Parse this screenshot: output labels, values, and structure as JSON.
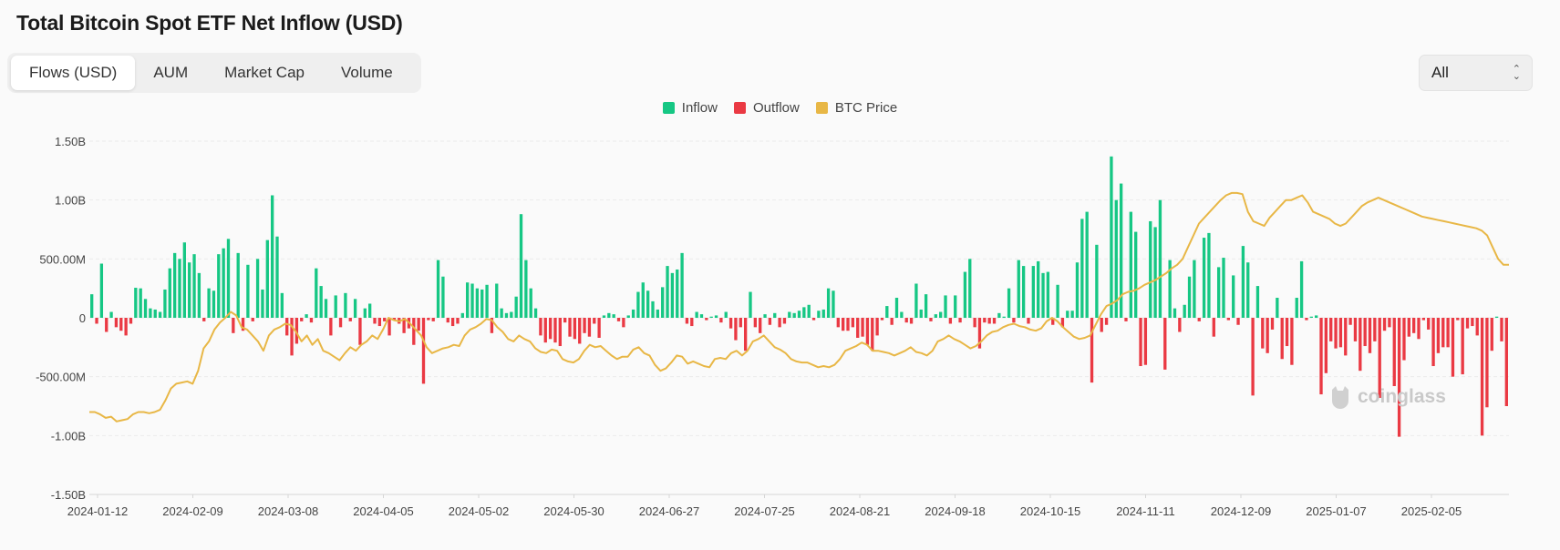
{
  "title": "Total Bitcoin Spot ETF Net Inflow (USD)",
  "tabs": [
    {
      "label": "Flows (USD)",
      "active": true
    },
    {
      "label": "AUM",
      "active": false
    },
    {
      "label": "Market Cap",
      "active": false
    },
    {
      "label": "Volume",
      "active": false
    }
  ],
  "range_select": {
    "value": "All"
  },
  "legend": [
    {
      "label": "Inflow",
      "color": "#16c784"
    },
    {
      "label": "Outflow",
      "color": "#ea3943"
    },
    {
      "label": "BTC Price",
      "color": "#e8b746"
    }
  ],
  "watermark": "coinglass",
  "chart_data": {
    "type": "bar",
    "title": "Total Bitcoin Spot ETF Net Inflow (USD)",
    "unit": "USD",
    "ylim": [
      -1500000000,
      1500000000
    ],
    "yticks": [
      1500000000,
      1000000000,
      500000000,
      0,
      -500000000,
      -1000000000,
      -1500000000
    ],
    "ytick_labels": [
      "1.50B",
      "1.00B",
      "500.00M",
      "0",
      "-500.00M",
      "-1.00B",
      "-1.50B"
    ],
    "xtick_labels": [
      "2024-01-12",
      "2024-02-09",
      "2024-03-08",
      "2024-04-05",
      "2024-05-02",
      "2024-05-30",
      "2024-06-27",
      "2024-07-25",
      "2024-08-21",
      "2024-09-18",
      "2024-10-15",
      "2024-11-11",
      "2024-12-09",
      "2025-01-07",
      "2025-02-05"
    ],
    "series": [
      {
        "name": "Net Flow (M USD)",
        "values": [
          200,
          -50,
          460,
          -120,
          50,
          -80,
          -110,
          -150,
          -50,
          255,
          250,
          160,
          80,
          70,
          50,
          240,
          420,
          550,
          500,
          640,
          470,
          540,
          380,
          -30,
          250,
          230,
          540,
          590,
          670,
          -130,
          550,
          -110,
          450,
          -30,
          500,
          240,
          660,
          1040,
          690,
          210,
          -150,
          -320,
          -220,
          -30,
          30,
          -40,
          420,
          270,
          160,
          -150,
          190,
          -80,
          210,
          -30,
          160,
          -230,
          80,
          120,
          -50,
          -70,
          -30,
          -150,
          -20,
          -50,
          -130,
          -90,
          -230,
          -110,
          -560,
          -20,
          -30,
          490,
          350,
          -40,
          -70,
          -50,
          40,
          300,
          290,
          250,
          240,
          280,
          -130,
          290,
          80,
          40,
          50,
          180,
          880,
          490,
          250,
          80,
          -150,
          -210,
          -180,
          -210,
          -240,
          -40,
          -160,
          -180,
          -220,
          -130,
          -160,
          -50,
          -170,
          20,
          40,
          30,
          -30,
          -80,
          20,
          70,
          220,
          300,
          230,
          140,
          70,
          260,
          440,
          380,
          410,
          550,
          -50,
          -70,
          50,
          30,
          -20,
          10,
          20,
          -40,
          50,
          -90,
          -190,
          -80,
          -280,
          220,
          -80,
          -130,
          30,
          -60,
          40,
          -80,
          -50,
          50,
          40,
          60,
          90,
          110,
          -20,
          60,
          70,
          250,
          230,
          -80,
          -110,
          -110,
          -80,
          -170,
          -160,
          -230,
          -280,
          -150,
          -20,
          100,
          -60,
          170,
          50,
          -40,
          -50,
          290,
          70,
          200,
          -30,
          30,
          50,
          190,
          -50,
          190,
          -40,
          390,
          500,
          -80,
          -260,
          -40,
          -50,
          -50,
          40,
          10,
          250,
          -40,
          490,
          440,
          -50,
          440,
          480,
          380,
          390,
          -60,
          280,
          -80,
          60,
          60,
          470,
          840,
          900,
          -550,
          620,
          -120,
          -60,
          1370,
          1000,
          1140,
          -30,
          900,
          730,
          -410,
          -400,
          820,
          770,
          1000,
          -440,
          490,
          80,
          -120,
          110,
          350,
          490,
          -30,
          680,
          720,
          -160,
          430,
          510,
          -20,
          360,
          -60,
          610,
          470,
          -660,
          270,
          -260,
          -300,
          -100,
          170,
          -350,
          -240,
          -400,
          170,
          480,
          -20,
          10,
          20,
          -650,
          -470,
          -200,
          -260,
          -250,
          -320,
          -60,
          -200,
          -450,
          -240,
          -300,
          -200,
          -680,
          -110,
          -80,
          -580,
          -1010,
          -360,
          -160,
          -130,
          -180,
          -20,
          -100,
          -410,
          -300,
          -250,
          -250,
          -500,
          -20,
          -480,
          -90,
          -70,
          -150,
          -1000,
          -760,
          -280,
          10,
          -200,
          -750
        ]
      },
      {
        "name": "BTC Price (plotted on flow scale, M)",
        "values": [
          -800,
          -800,
          -820,
          -850,
          -840,
          -880,
          -870,
          -860,
          -820,
          -800,
          -800,
          -810,
          -800,
          -780,
          -700,
          -600,
          -560,
          -550,
          -540,
          -560,
          -450,
          -260,
          -200,
          -100,
          -40,
          0,
          50,
          20,
          -80,
          -100,
          -150,
          -200,
          -280,
          -150,
          -100,
          -80,
          -50,
          -60,
          -120,
          -200,
          -150,
          -230,
          -180,
          -280,
          -300,
          -330,
          -360,
          -300,
          -250,
          -280,
          -230,
          -200,
          -150,
          -180,
          -100,
          0,
          -20,
          -30,
          -10,
          -50,
          -100,
          -150,
          -250,
          -300,
          -280,
          -260,
          -250,
          -230,
          -240,
          -150,
          -100,
          -80,
          -50,
          -10,
          -20,
          -80,
          -120,
          -180,
          -200,
          -150,
          -180,
          -200,
          -260,
          -290,
          -300,
          -270,
          -280,
          -350,
          -370,
          -380,
          -350,
          -280,
          -230,
          -250,
          -240,
          -280,
          -320,
          -350,
          -330,
          -330,
          -270,
          -250,
          -300,
          -320,
          -400,
          -450,
          -430,
          -380,
          -320,
          -330,
          -390,
          -370,
          -390,
          -410,
          -420,
          -350,
          -340,
          -350,
          -300,
          -280,
          -320,
          -280,
          -200,
          -180,
          -150,
          -200,
          -250,
          -270,
          -300,
          -350,
          -370,
          -380,
          -380,
          -400,
          -420,
          -410,
          -420,
          -400,
          -350,
          -280,
          -260,
          -240,
          -210,
          -230,
          -280,
          -280,
          -290,
          -300,
          -320,
          -300,
          -280,
          -250,
          -290,
          -300,
          -320,
          -280,
          -200,
          -180,
          -150,
          -180,
          -200,
          -230,
          -260,
          -240,
          -200,
          -150,
          -120,
          -110,
          -80,
          -60,
          -50,
          -70,
          -80,
          -100,
          -110,
          -90,
          -30,
          0,
          -30,
          -80,
          -120,
          -160,
          -180,
          -170,
          -150,
          -60,
          30,
          100,
          120,
          150,
          200,
          220,
          230,
          250,
          280,
          300,
          320,
          350,
          380,
          420,
          450,
          500,
          600,
          700,
          800,
          850,
          900,
          950,
          1000,
          1040,
          1060,
          1060,
          1050,
          900,
          820,
          800,
          780,
          850,
          900,
          950,
          1000,
          1000,
          1020,
          1040,
          980,
          900,
          880,
          860,
          840,
          800,
          780,
          800,
          850,
          900,
          950,
          980,
          1000,
          1020,
          1000,
          980,
          960,
          940,
          920,
          900,
          880,
          860,
          850,
          840,
          830,
          820,
          810,
          800,
          790,
          780,
          770,
          760,
          740,
          700,
          600,
          500,
          450,
          450
        ]
      }
    ]
  }
}
